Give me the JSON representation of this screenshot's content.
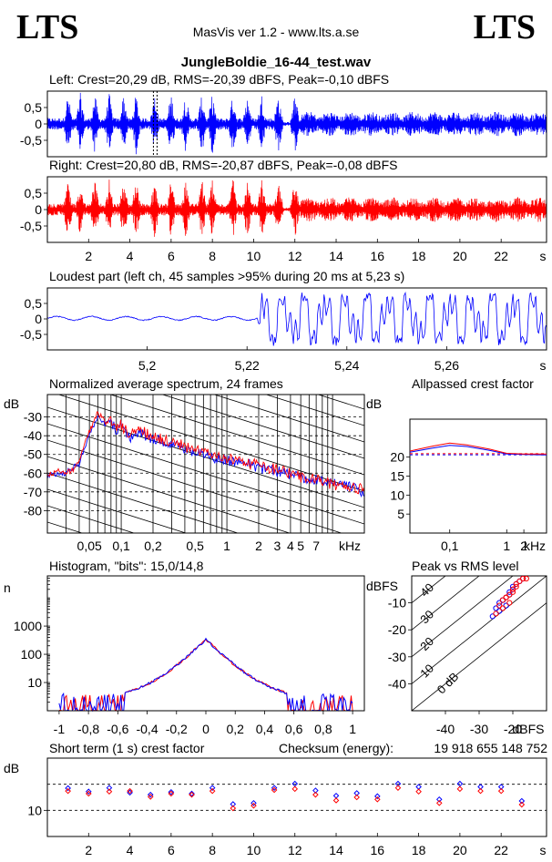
{
  "header": {
    "logo_left": "LTS",
    "logo_right": "LTS",
    "app_title": "MasVis ver 1.2 - www.lts.a.se",
    "file_name": "JungleBoldie_16-44_test.wav"
  },
  "colors": {
    "left": "#0000ff",
    "right": "#ff0000",
    "axis": "#000000"
  },
  "chart_data": [
    {
      "type": "line",
      "id": "left-waveform",
      "title": "Left: Crest=20,29 dB, RMS=-20,39 dBFS, Peak=-0,10 dBFS",
      "ytick_labels": [
        "0,5",
        "0",
        "-0,5"
      ],
      "yticks": [
        0.5,
        0,
        -0.5
      ],
      "ylim": [
        -1,
        1
      ],
      "xlim": [
        0,
        24.2
      ],
      "series": [
        {
          "color": "#0000ff"
        }
      ]
    },
    {
      "type": "line",
      "id": "right-waveform",
      "title": "Right: Crest=20,80 dB, RMS=-20,87 dBFS, Peak=-0,08 dBFS",
      "ytick_labels": [
        "0,5",
        "0",
        "-0,5"
      ],
      "yticks": [
        0.5,
        0,
        -0.5
      ],
      "ylim": [
        -1,
        1
      ],
      "xlim": [
        0,
        24.2
      ],
      "xticks": [
        2,
        4,
        6,
        8,
        10,
        12,
        14,
        16,
        18,
        20,
        22
      ],
      "xtick_labels": [
        "2",
        "4",
        "6",
        "8",
        "10",
        "12",
        "14",
        "16",
        "18",
        "20",
        "22"
      ],
      "xunit": "s",
      "series": [
        {
          "color": "#ff0000"
        }
      ]
    },
    {
      "type": "line",
      "id": "loudest-part",
      "title": "Loudest part (left  ch, 45 samples >95% during 20 ms at 5,23 s)",
      "ytick_labels": [
        "0,5",
        "0",
        "-0,5"
      ],
      "yticks": [
        0.5,
        0,
        -0.5
      ],
      "ylim": [
        -1,
        1
      ],
      "xlim": [
        5.18,
        5.28
      ],
      "xticks": [
        5.2,
        5.22,
        5.24,
        5.26
      ],
      "xtick_labels": [
        "5,2",
        "5,22",
        "5,24",
        "5,26"
      ],
      "xunit": "s",
      "series": [
        {
          "color": "#0000ff"
        }
      ]
    },
    {
      "type": "line",
      "id": "spectrum",
      "title": "Normalized average spectrum, 24 frames",
      "ylabel": "dB",
      "ytick_labels": [
        "-30",
        "-40",
        "-50",
        "-60",
        "-70",
        "-80"
      ],
      "yticks": [
        -30,
        -40,
        -50,
        -60,
        -70,
        -80
      ],
      "ylim": [
        -92,
        -18
      ],
      "xscale": "log",
      "xlim": [
        0.02,
        20
      ],
      "xtick_labels": [
        "0,05",
        "0,1",
        "0,2",
        "0,5",
        "1",
        "2",
        "3",
        "4",
        "5",
        "7",
        "kHz"
      ],
      "xticks": [
        0.05,
        0.1,
        0.2,
        0.5,
        1,
        2,
        3,
        4,
        5,
        7
      ],
      "series": [
        {
          "color": "#0000ff",
          "x": [
            0.02,
            0.025,
            0.03,
            0.035,
            0.04,
            0.045,
            0.05,
            0.055,
            0.06,
            0.07,
            0.08,
            0.09,
            0.1,
            0.12,
            0.15,
            0.2,
            0.3,
            0.5,
            0.7,
            1,
            1.5,
            2,
            3,
            4,
            5,
            7,
            10,
            14,
            20
          ],
          "y": [
            -62,
            -60,
            -60,
            -57,
            -55,
            -46,
            -40,
            -35,
            -29,
            -34,
            -32,
            -38,
            -33,
            -41,
            -38,
            -42,
            -44,
            -49,
            -51,
            -53,
            -55,
            -57,
            -59,
            -61,
            -62,
            -64,
            -65,
            -67,
            -70
          ]
        },
        {
          "color": "#ff0000",
          "x": [
            0.02,
            0.025,
            0.03,
            0.035,
            0.04,
            0.045,
            0.05,
            0.055,
            0.06,
            0.07,
            0.08,
            0.09,
            0.1,
            0.12,
            0.15,
            0.2,
            0.3,
            0.5,
            0.7,
            1,
            1.5,
            2,
            3,
            4,
            5,
            7,
            10,
            14,
            20
          ],
          "y": [
            -61,
            -59,
            -60,
            -58,
            -53,
            -45,
            -38,
            -33,
            -27,
            -33,
            -31,
            -37,
            -34,
            -40,
            -37,
            -41,
            -43,
            -48,
            -50,
            -52,
            -54,
            -56,
            -58,
            -60,
            -62,
            -63,
            -66,
            -67,
            -69
          ]
        }
      ]
    },
    {
      "type": "line",
      "id": "allpassed-crest",
      "title": "Allpassed crest factor",
      "ylabel": "dB",
      "ytick_labels": [
        "20",
        "15",
        "10",
        "5"
      ],
      "yticks": [
        20,
        15,
        10,
        5
      ],
      "ylim": [
        0,
        30
      ],
      "xscale": "log",
      "xlim": [
        0.02,
        5
      ],
      "xtick_labels": [
        "0,1",
        "1",
        "2",
        "kHz"
      ],
      "xticks": [
        0.1,
        1,
        2
      ],
      "reference_lines": [
        20.6,
        20.9
      ],
      "series": [
        {
          "color": "#0000ff",
          "x": [
            0.02,
            0.05,
            0.1,
            0.2,
            0.5,
            1,
            2,
            5
          ],
          "y": [
            21.3,
            22.4,
            23.1,
            22.8,
            21.8,
            20.8,
            20.7,
            20.6
          ]
        },
        {
          "color": "#ff0000",
          "x": [
            0.02,
            0.05,
            0.1,
            0.2,
            0.5,
            1,
            2,
            5
          ],
          "y": [
            21.6,
            22.9,
            23.7,
            23.2,
            22.1,
            21.0,
            20.8,
            20.8
          ]
        }
      ]
    },
    {
      "type": "line",
      "id": "histogram",
      "title": "Histogram, \"bits\": 15,0/14,8",
      "ylabel": "n",
      "yscale": "log",
      "ytick_labels": [
        "1000",
        "100",
        "10"
      ],
      "yticks": [
        1000,
        100,
        10
      ],
      "ylim": [
        1,
        60000
      ],
      "xlim": [
        -1.08,
        1.08
      ],
      "xticks": [
        -1,
        -0.8,
        -0.6,
        -0.4,
        -0.2,
        0,
        0.2,
        0.4,
        0.6,
        0.8,
        1
      ],
      "xtick_labels": [
        "-1",
        "-0,8",
        "-0,6",
        "-0,4",
        "-0,2",
        "0",
        "0,2",
        "0,4",
        "0,6",
        "0,8",
        "1"
      ]
    },
    {
      "type": "scatter",
      "id": "peak-vs-rms",
      "title": "Peak vs RMS level",
      "ylabel": "dBFS",
      "ytick_labels": [
        "-10",
        "-20",
        "-30",
        "-40"
      ],
      "yticks": [
        -10,
        -20,
        -30,
        -40
      ],
      "ylim": [
        -50,
        0
      ],
      "xlim": [
        -50,
        -10
      ],
      "xticks": [
        -40,
        -30,
        -20
      ],
      "xtick_labels": [
        "-40",
        "-30",
        "-20",
        "dBFS"
      ],
      "crest_lines": [
        0,
        10,
        20,
        30,
        40
      ],
      "crest_labels": [
        "0 dB",
        "10",
        "20",
        "30",
        "40"
      ],
      "series": [
        {
          "color": "#0000ff",
          "x": [
            -24,
            -23,
            -22,
            -21,
            -20,
            -19,
            -26,
            -25,
            -22,
            -21,
            -18,
            -17,
            -24,
            -20,
            -23
          ],
          "y": [
            -10,
            -9,
            -8,
            -6,
            -4,
            -3,
            -15,
            -12,
            -11,
            -7,
            -2,
            -1,
            -13,
            -5,
            -9
          ]
        },
        {
          "color": "#ff0000",
          "x": [
            -23,
            -22,
            -21,
            -20,
            -19,
            -18,
            -25,
            -24,
            -21,
            -20,
            -17,
            -16,
            -23,
            -19,
            -22
          ],
          "y": [
            -9,
            -8,
            -7,
            -5,
            -3,
            -2,
            -14,
            -11,
            -10,
            -6,
            -1,
            -1,
            -12,
            -4,
            -8
          ]
        }
      ]
    },
    {
      "type": "scatter",
      "id": "short-term-crest",
      "title": "Short term (1 s) crest factor",
      "checksum_label": "Checksum (energy):",
      "checksum_value": "19 918 655 148 752",
      "ylabel": "dB",
      "ytick_labels": [
        "10"
      ],
      "yticks": [
        10
      ],
      "ylim": [
        0,
        30
      ],
      "reference_lines": [
        10,
        20
      ],
      "xlim": [
        0,
        24.2
      ],
      "xticks": [
        2,
        4,
        6,
        8,
        10,
        12,
        14,
        16,
        18,
        20,
        22
      ],
      "xtick_labels": [
        "2",
        "4",
        "6",
        "8",
        "10",
        "12",
        "14",
        "16",
        "18",
        "20",
        "22"
      ],
      "xunit": "s",
      "series": [
        {
          "color": "#0000ff",
          "x": [
            1,
            2,
            3,
            4,
            5,
            6,
            7,
            8,
            9,
            10,
            11,
            12,
            13,
            14,
            15,
            16,
            17,
            18,
            19,
            20,
            21,
            22,
            23
          ],
          "y": [
            18.5,
            17.2,
            18.6,
            16.8,
            16.0,
            17.0,
            16.4,
            18.6,
            12.4,
            12.8,
            18.6,
            20.2,
            17.6,
            15.6,
            16.6,
            15.4,
            20.2,
            19.0,
            14.2,
            20.2,
            19.0,
            19.0,
            13.6
          ]
        },
        {
          "color": "#ff0000",
          "x": [
            1,
            2,
            3,
            4,
            5,
            6,
            7,
            8,
            9,
            10,
            11,
            12,
            13,
            14,
            15,
            16,
            17,
            18,
            19,
            20,
            21,
            22,
            23
          ],
          "y": [
            17.4,
            16.4,
            17.2,
            17.4,
            15.2,
            16.4,
            16.0,
            17.4,
            10.8,
            11.8,
            17.8,
            18.2,
            16.0,
            13.8,
            15.0,
            14.2,
            18.6,
            17.2,
            12.8,
            18.2,
            17.4,
            17.4,
            12.2
          ]
        }
      ]
    }
  ]
}
